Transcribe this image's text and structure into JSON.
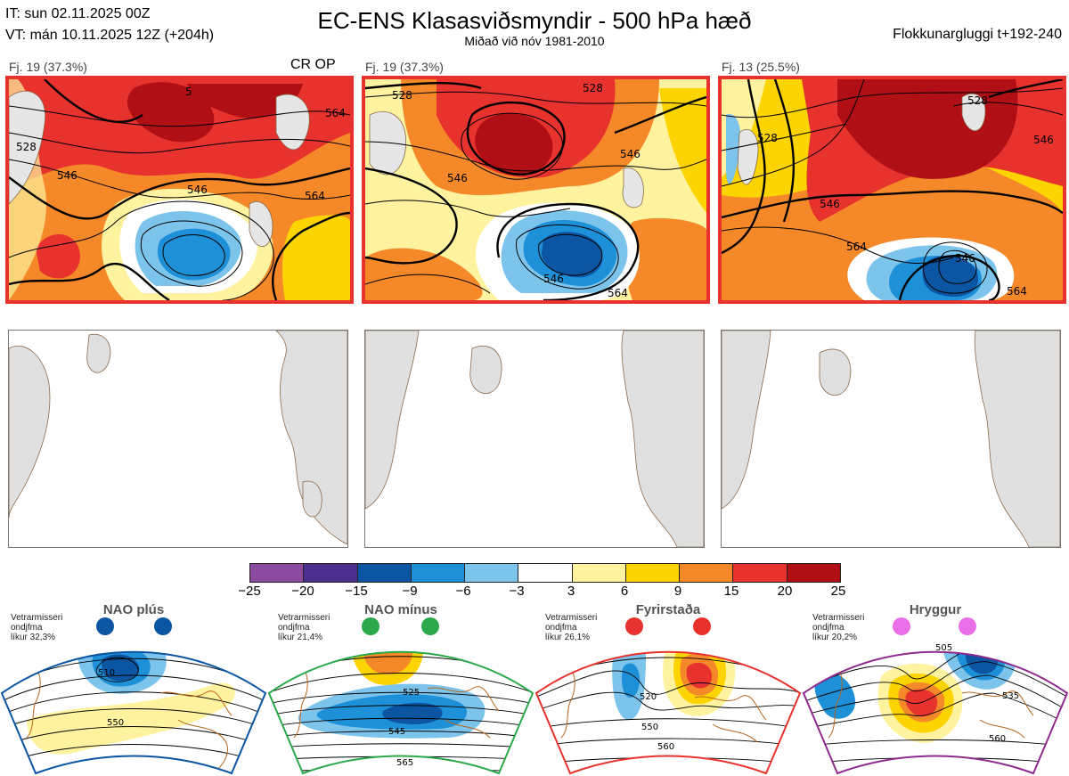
{
  "header": {
    "it_line": "IT: sun 02.11.2025 00Z",
    "vt_line": "VT: mán 10.11.2025 12Z  (+204h)",
    "title": "EC-ENS Klasasviðsmyndir - 500 hPa hæð",
    "subtitle": "Miðað við nóv 1981-2010",
    "window": "Flokkunargluggi t+192-240"
  },
  "clusters": [
    {
      "label": "Fj. 19 (37.3%)",
      "tag": "CR OP",
      "contours": [
        "528",
        "546",
        "546",
        "564",
        "564",
        "5"
      ]
    },
    {
      "label": "Fj. 19 (37.3%)",
      "tag": "",
      "contours": [
        "528",
        "528",
        "546",
        "546",
        "546",
        "564"
      ]
    },
    {
      "label": "Fj. 13 (25.5%)",
      "tag": "",
      "contours": [
        "528",
        "528",
        "546",
        "546",
        "546",
        "564",
        "564"
      ]
    }
  ],
  "colorbar": {
    "ticks": [
      "−25",
      "−20",
      "−15",
      "−9",
      "−6",
      "−3",
      "3",
      "6",
      "9",
      "15",
      "20",
      "25"
    ],
    "colors": [
      "#8b4a9e",
      "#4b2f8f",
      "#0b55a3",
      "#1e90d8",
      "#7cc4ec",
      "#ffffff",
      "#fff3a0",
      "#fdd400",
      "#f5892a",
      "#e8322d",
      "#b01015"
    ]
  },
  "regimes": [
    {
      "name": "NAO plús",
      "season": "Vetrarmisseri",
      "pattern": "ondjfma",
      "prob": "líkur 32,3%",
      "color": "#0b55a3",
      "contours": [
        "510",
        "550"
      ]
    },
    {
      "name": "NAO mínus",
      "season": "Vetrarmisseri",
      "pattern": "ondjfma",
      "prob": "líkur 21,4%",
      "color": "#2aa84a",
      "contours": [
        "525",
        "545",
        "565"
      ]
    },
    {
      "name": "Fyrirstaða",
      "season": "Vetrarmisseri",
      "pattern": "ondjfma",
      "prob": "líkur 26,1%",
      "color": "#e8322d",
      "contours": [
        "520",
        "550",
        "560"
      ]
    },
    {
      "name": "Hryggur",
      "season": "Vetrarmisseri",
      "pattern": "ondjfma",
      "prob": "líkur 20,2%",
      "color": "#8e2a8e",
      "contours": [
        "505",
        "535",
        "560"
      ]
    }
  ]
}
